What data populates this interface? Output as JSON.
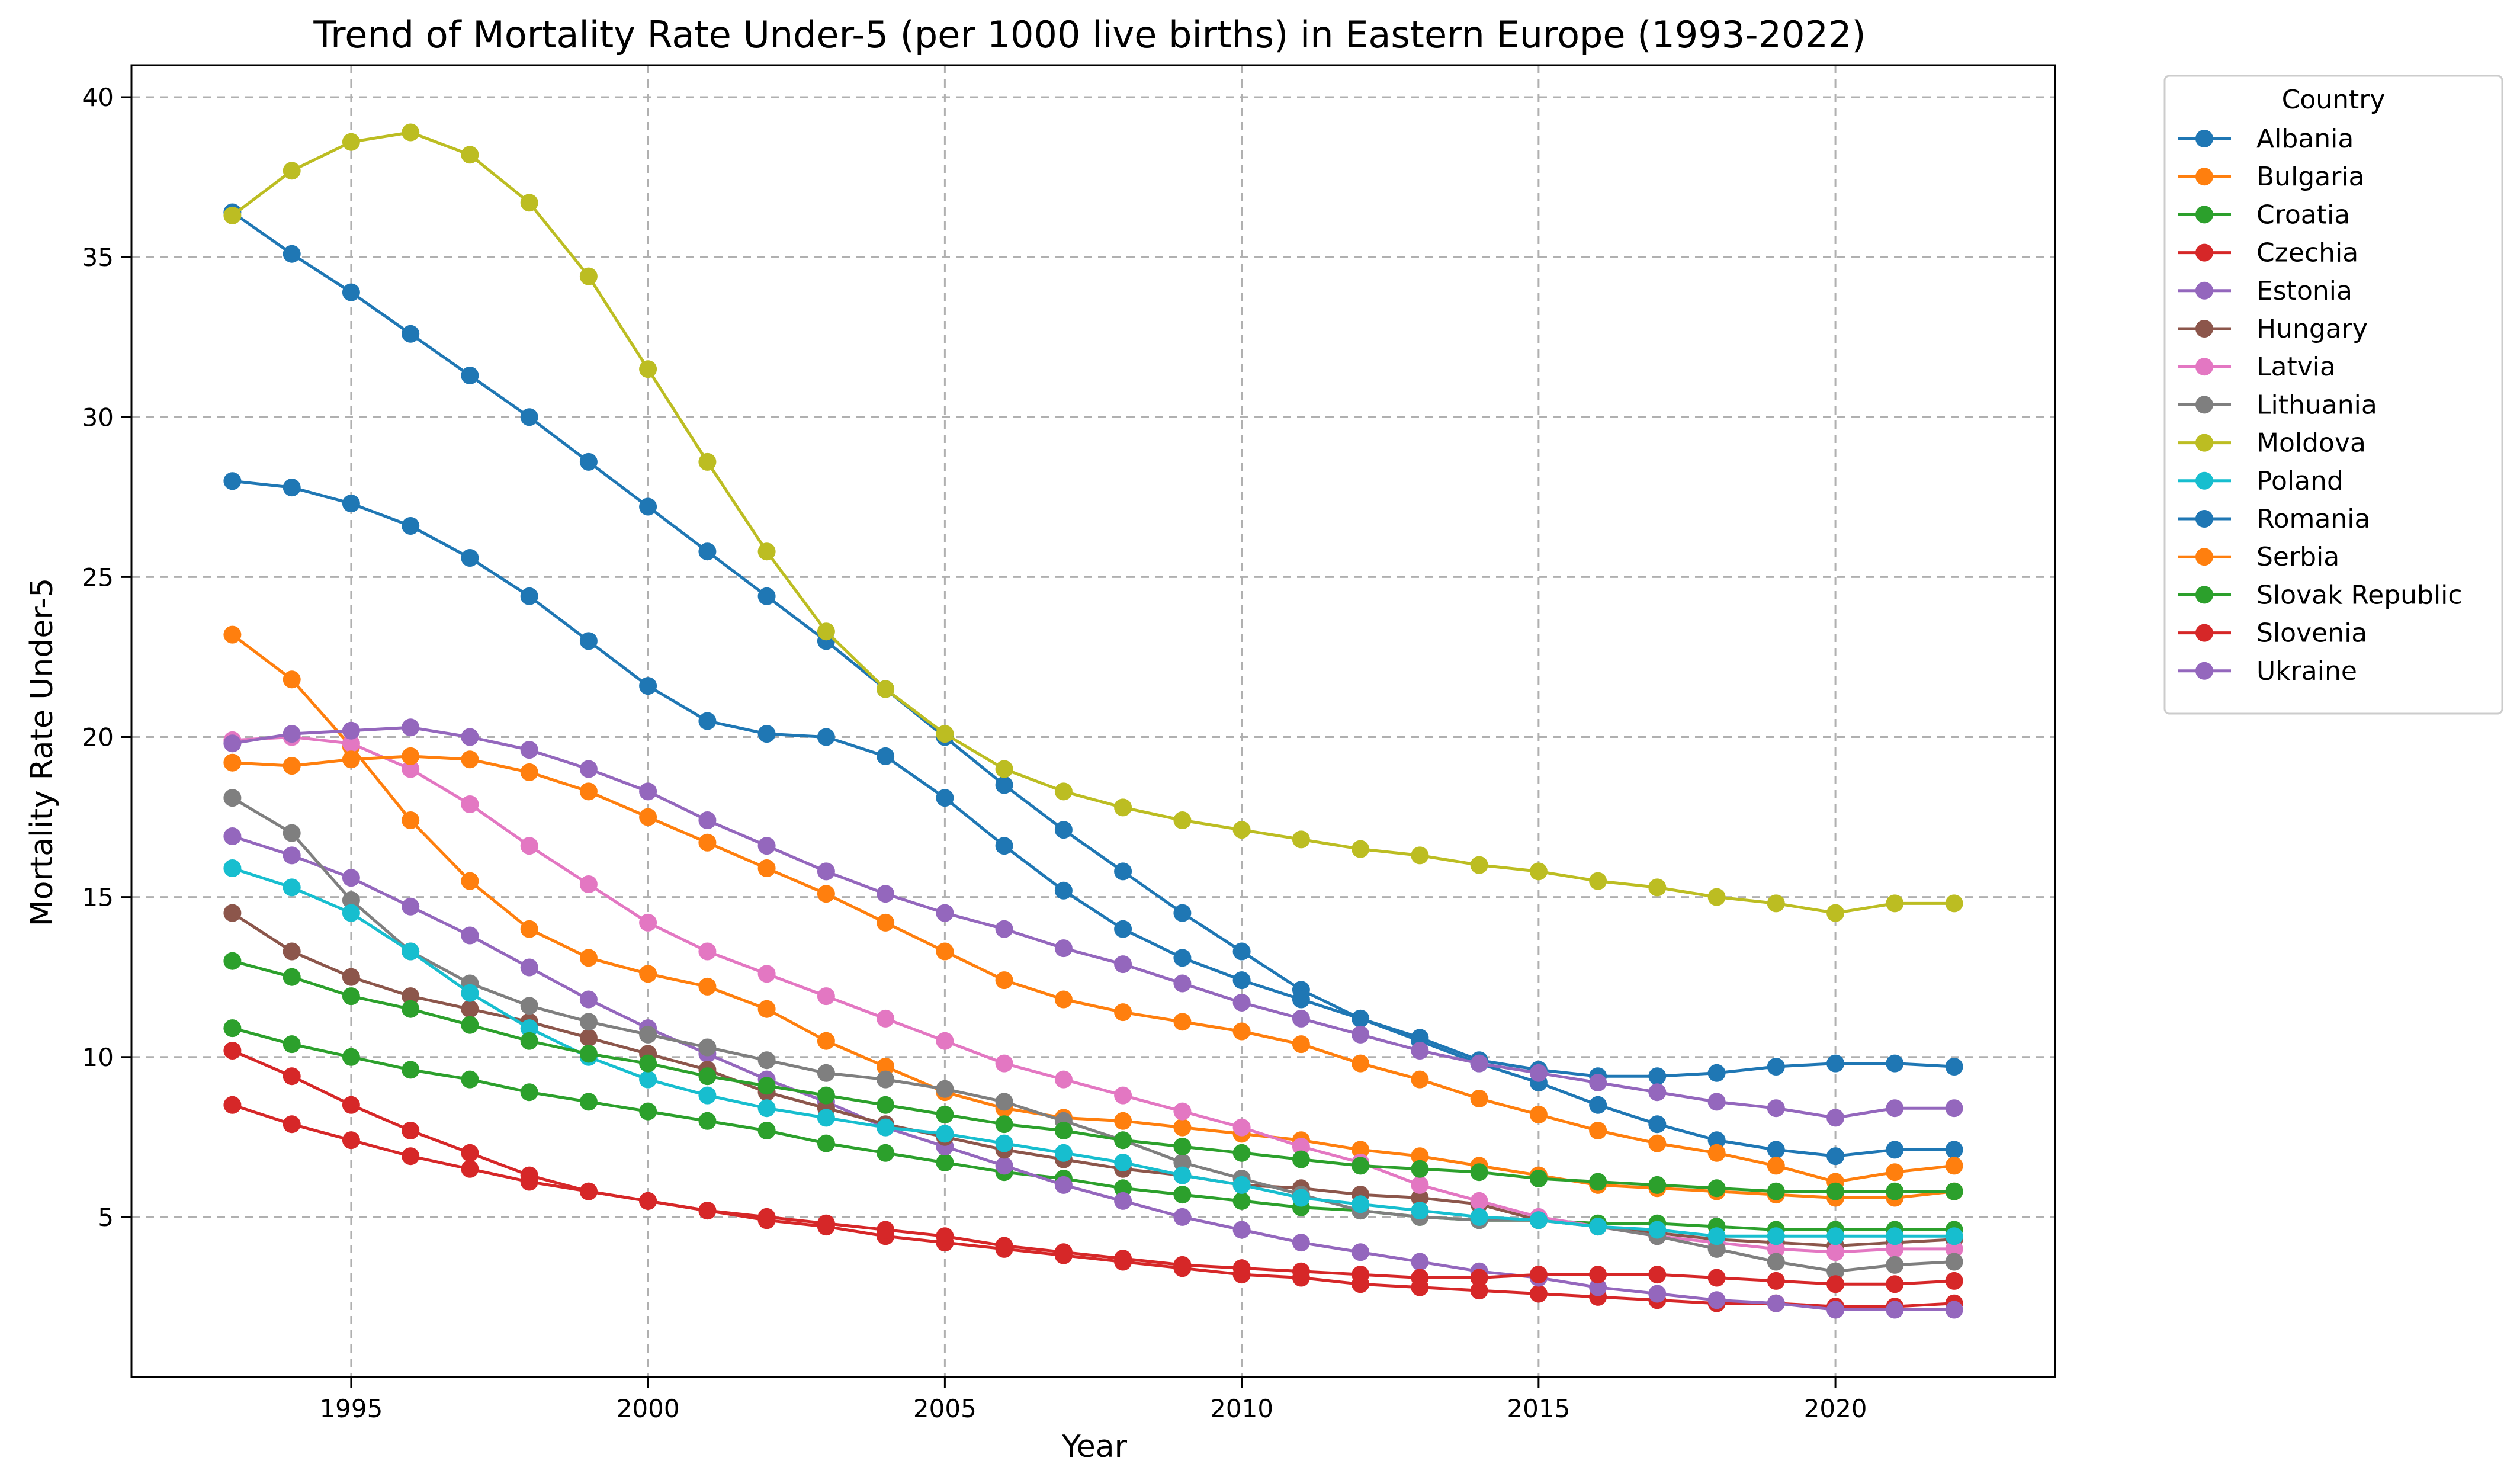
{
  "chart_data": {
    "type": "line",
    "title": "Trend of Mortality Rate Under-5 (per 1000 live births) in Eastern Europe (1993-2022)",
    "xlabel": "Year",
    "ylabel": "Mortality Rate Under-5",
    "xlim": [
      1991.3,
      2023.7
    ],
    "ylim": [
      0.0,
      41.0
    ],
    "xticks": [
      1995,
      2000,
      2005,
      2010,
      2015,
      2020
    ],
    "yticks": [
      5,
      10,
      15,
      20,
      25,
      30,
      35,
      40
    ],
    "grid": true,
    "legend": {
      "title": "Country",
      "placement": "outside-top-right"
    },
    "x": [
      1993,
      1994,
      1995,
      1996,
      1997,
      1998,
      1999,
      2000,
      2001,
      2002,
      2003,
      2004,
      2005,
      2006,
      2007,
      2008,
      2009,
      2010,
      2011,
      2012,
      2013,
      2014,
      2015,
      2016,
      2017,
      2018,
      2019,
      2020,
      2021,
      2022
    ],
    "series": [
      {
        "name": "Albania",
        "color": "#1f77b4",
        "values": [
          36.4,
          35.1,
          33.9,
          32.6,
          31.3,
          30.0,
          28.6,
          27.2,
          25.8,
          24.4,
          23.0,
          21.5,
          20.0,
          18.5,
          17.1,
          15.8,
          14.5,
          13.3,
          12.1,
          11.2,
          10.5,
          9.8,
          9.2,
          8.5,
          7.9,
          7.4,
          7.1,
          6.9,
          7.1,
          7.1
        ]
      },
      {
        "name": "Bulgaria",
        "color": "#ff7f0e",
        "values": [
          23.2,
          21.8,
          19.7,
          17.4,
          15.5,
          14.0,
          13.1,
          12.6,
          12.2,
          11.5,
          10.5,
          9.7,
          8.9,
          8.4,
          8.1,
          8.0,
          7.8,
          7.6,
          7.4,
          7.1,
          6.9,
          6.6,
          6.3,
          6.0,
          5.9,
          5.8,
          5.7,
          5.6,
          5.6,
          5.8
        ]
      },
      {
        "name": "Croatia",
        "color": "#2ca02c",
        "values": [
          10.9,
          10.4,
          10.0,
          9.6,
          9.3,
          8.9,
          8.6,
          8.3,
          8.0,
          7.7,
          7.3,
          7.0,
          6.7,
          6.4,
          6.2,
          5.9,
          5.7,
          5.5,
          5.3,
          5.2,
          5.0,
          4.9,
          4.9,
          4.8,
          4.8,
          4.7,
          4.6,
          4.6,
          4.6,
          4.6
        ]
      },
      {
        "name": "Czechia",
        "color": "#d62728",
        "values": [
          8.5,
          7.9,
          7.4,
          6.9,
          6.5,
          6.1,
          5.8,
          5.5,
          5.2,
          4.9,
          4.7,
          4.4,
          4.2,
          4.0,
          3.8,
          3.6,
          3.4,
          3.2,
          3.1,
          2.9,
          2.8,
          2.7,
          2.6,
          2.5,
          2.4,
          2.3,
          2.3,
          2.2,
          2.2,
          2.3
        ]
      },
      {
        "name": "Estonia",
        "color": "#9467bd",
        "values": [
          16.9,
          16.3,
          15.6,
          14.7,
          13.8,
          12.8,
          11.8,
          10.9,
          10.1,
          9.3,
          8.6,
          7.8,
          7.2,
          6.6,
          6.0,
          5.5,
          5.0,
          4.6,
          4.2,
          3.9,
          3.6,
          3.3,
          3.1,
          2.8,
          2.6,
          2.4,
          2.3,
          2.1,
          2.1,
          2.1
        ]
      },
      {
        "name": "Hungary",
        "color": "#8c564b",
        "values": [
          14.5,
          13.3,
          12.5,
          11.9,
          11.5,
          11.1,
          10.6,
          10.1,
          9.6,
          8.9,
          8.4,
          7.9,
          7.5,
          7.1,
          6.8,
          6.5,
          6.3,
          6.0,
          5.9,
          5.7,
          5.6,
          5.4,
          4.9,
          4.7,
          4.5,
          4.3,
          4.2,
          4.1,
          4.2,
          4.3
        ]
      },
      {
        "name": "Latvia",
        "color": "#e377c2",
        "values": [
          19.9,
          20.0,
          19.8,
          19.0,
          17.9,
          16.6,
          15.4,
          14.2,
          13.3,
          12.6,
          11.9,
          11.2,
          10.5,
          9.8,
          9.3,
          8.8,
          8.3,
          7.8,
          7.2,
          6.7,
          6.0,
          5.5,
          5.0,
          4.7,
          4.4,
          4.2,
          4.0,
          3.9,
          4.0,
          4.0
        ]
      },
      {
        "name": "Lithuania",
        "color": "#7f7f7f",
        "values": [
          18.1,
          17.0,
          14.9,
          13.3,
          12.3,
          11.6,
          11.1,
          10.7,
          10.3,
          9.9,
          9.5,
          9.3,
          9.0,
          8.6,
          8.0,
          7.4,
          6.7,
          6.2,
          5.7,
          5.2,
          5.0,
          4.9,
          4.9,
          4.7,
          4.4,
          4.0,
          3.6,
          3.3,
          3.5,
          3.6
        ]
      },
      {
        "name": "Moldova",
        "color": "#bcbd22",
        "values": [
          36.3,
          37.7,
          38.6,
          38.9,
          38.2,
          36.7,
          34.4,
          31.5,
          28.6,
          25.8,
          23.3,
          21.5,
          20.1,
          19.0,
          18.3,
          17.8,
          17.4,
          17.1,
          16.8,
          16.5,
          16.3,
          16.0,
          15.8,
          15.5,
          15.3,
          15.0,
          14.8,
          14.5,
          14.8,
          14.8
        ]
      },
      {
        "name": "Poland",
        "color": "#17becf",
        "values": [
          15.9,
          15.3,
          14.5,
          13.3,
          12.0,
          10.9,
          10.0,
          9.3,
          8.8,
          8.4,
          8.1,
          7.8,
          7.6,
          7.3,
          7.0,
          6.7,
          6.3,
          6.0,
          5.6,
          5.4,
          5.2,
          5.0,
          4.9,
          4.7,
          4.6,
          4.4,
          4.4,
          4.4,
          4.4,
          4.4
        ]
      },
      {
        "name": "Romania",
        "color": "#1f77b4",
        "values": [
          28.0,
          27.8,
          27.3,
          26.6,
          25.6,
          24.4,
          23.0,
          21.6,
          20.5,
          20.1,
          20.0,
          19.4,
          18.1,
          16.6,
          15.2,
          14.0,
          13.1,
          12.4,
          11.8,
          11.2,
          10.6,
          9.9,
          9.6,
          9.4,
          9.4,
          9.5,
          9.7,
          9.8,
          9.8,
          9.7
        ]
      },
      {
        "name": "Serbia",
        "color": "#ff7f0e",
        "values": [
          19.2,
          19.1,
          19.3,
          19.4,
          19.3,
          18.9,
          18.3,
          17.5,
          16.7,
          15.9,
          15.1,
          14.2,
          13.3,
          12.4,
          11.8,
          11.4,
          11.1,
          10.8,
          10.4,
          9.8,
          9.3,
          8.7,
          8.2,
          7.7,
          7.3,
          7.0,
          6.6,
          6.1,
          6.4,
          6.6
        ]
      },
      {
        "name": "Slovak Republic",
        "color": "#2ca02c",
        "values": [
          13.0,
          12.5,
          11.9,
          11.5,
          11.0,
          10.5,
          10.1,
          9.8,
          9.4,
          9.1,
          8.8,
          8.5,
          8.2,
          7.9,
          7.7,
          7.4,
          7.2,
          7.0,
          6.8,
          6.6,
          6.5,
          6.4,
          6.2,
          6.1,
          6.0,
          5.9,
          5.8,
          5.8,
          5.8,
          5.8
        ]
      },
      {
        "name": "Slovenia",
        "color": "#d62728",
        "values": [
          10.2,
          9.4,
          8.5,
          7.7,
          7.0,
          6.3,
          5.8,
          5.5,
          5.2,
          5.0,
          4.8,
          4.6,
          4.4,
          4.1,
          3.9,
          3.7,
          3.5,
          3.4,
          3.3,
          3.2,
          3.1,
          3.1,
          3.2,
          3.2,
          3.2,
          3.1,
          3.0,
          2.9,
          2.9,
          3.0
        ]
      },
      {
        "name": "Ukraine",
        "color": "#9467bd",
        "values": [
          19.8,
          20.1,
          20.2,
          20.3,
          20.0,
          19.6,
          19.0,
          18.3,
          17.4,
          16.6,
          15.8,
          15.1,
          14.5,
          14.0,
          13.4,
          12.9,
          12.3,
          11.7,
          11.2,
          10.7,
          10.2,
          9.8,
          9.5,
          9.2,
          8.9,
          8.6,
          8.4,
          8.1,
          8.4,
          8.4
        ]
      }
    ]
  }
}
